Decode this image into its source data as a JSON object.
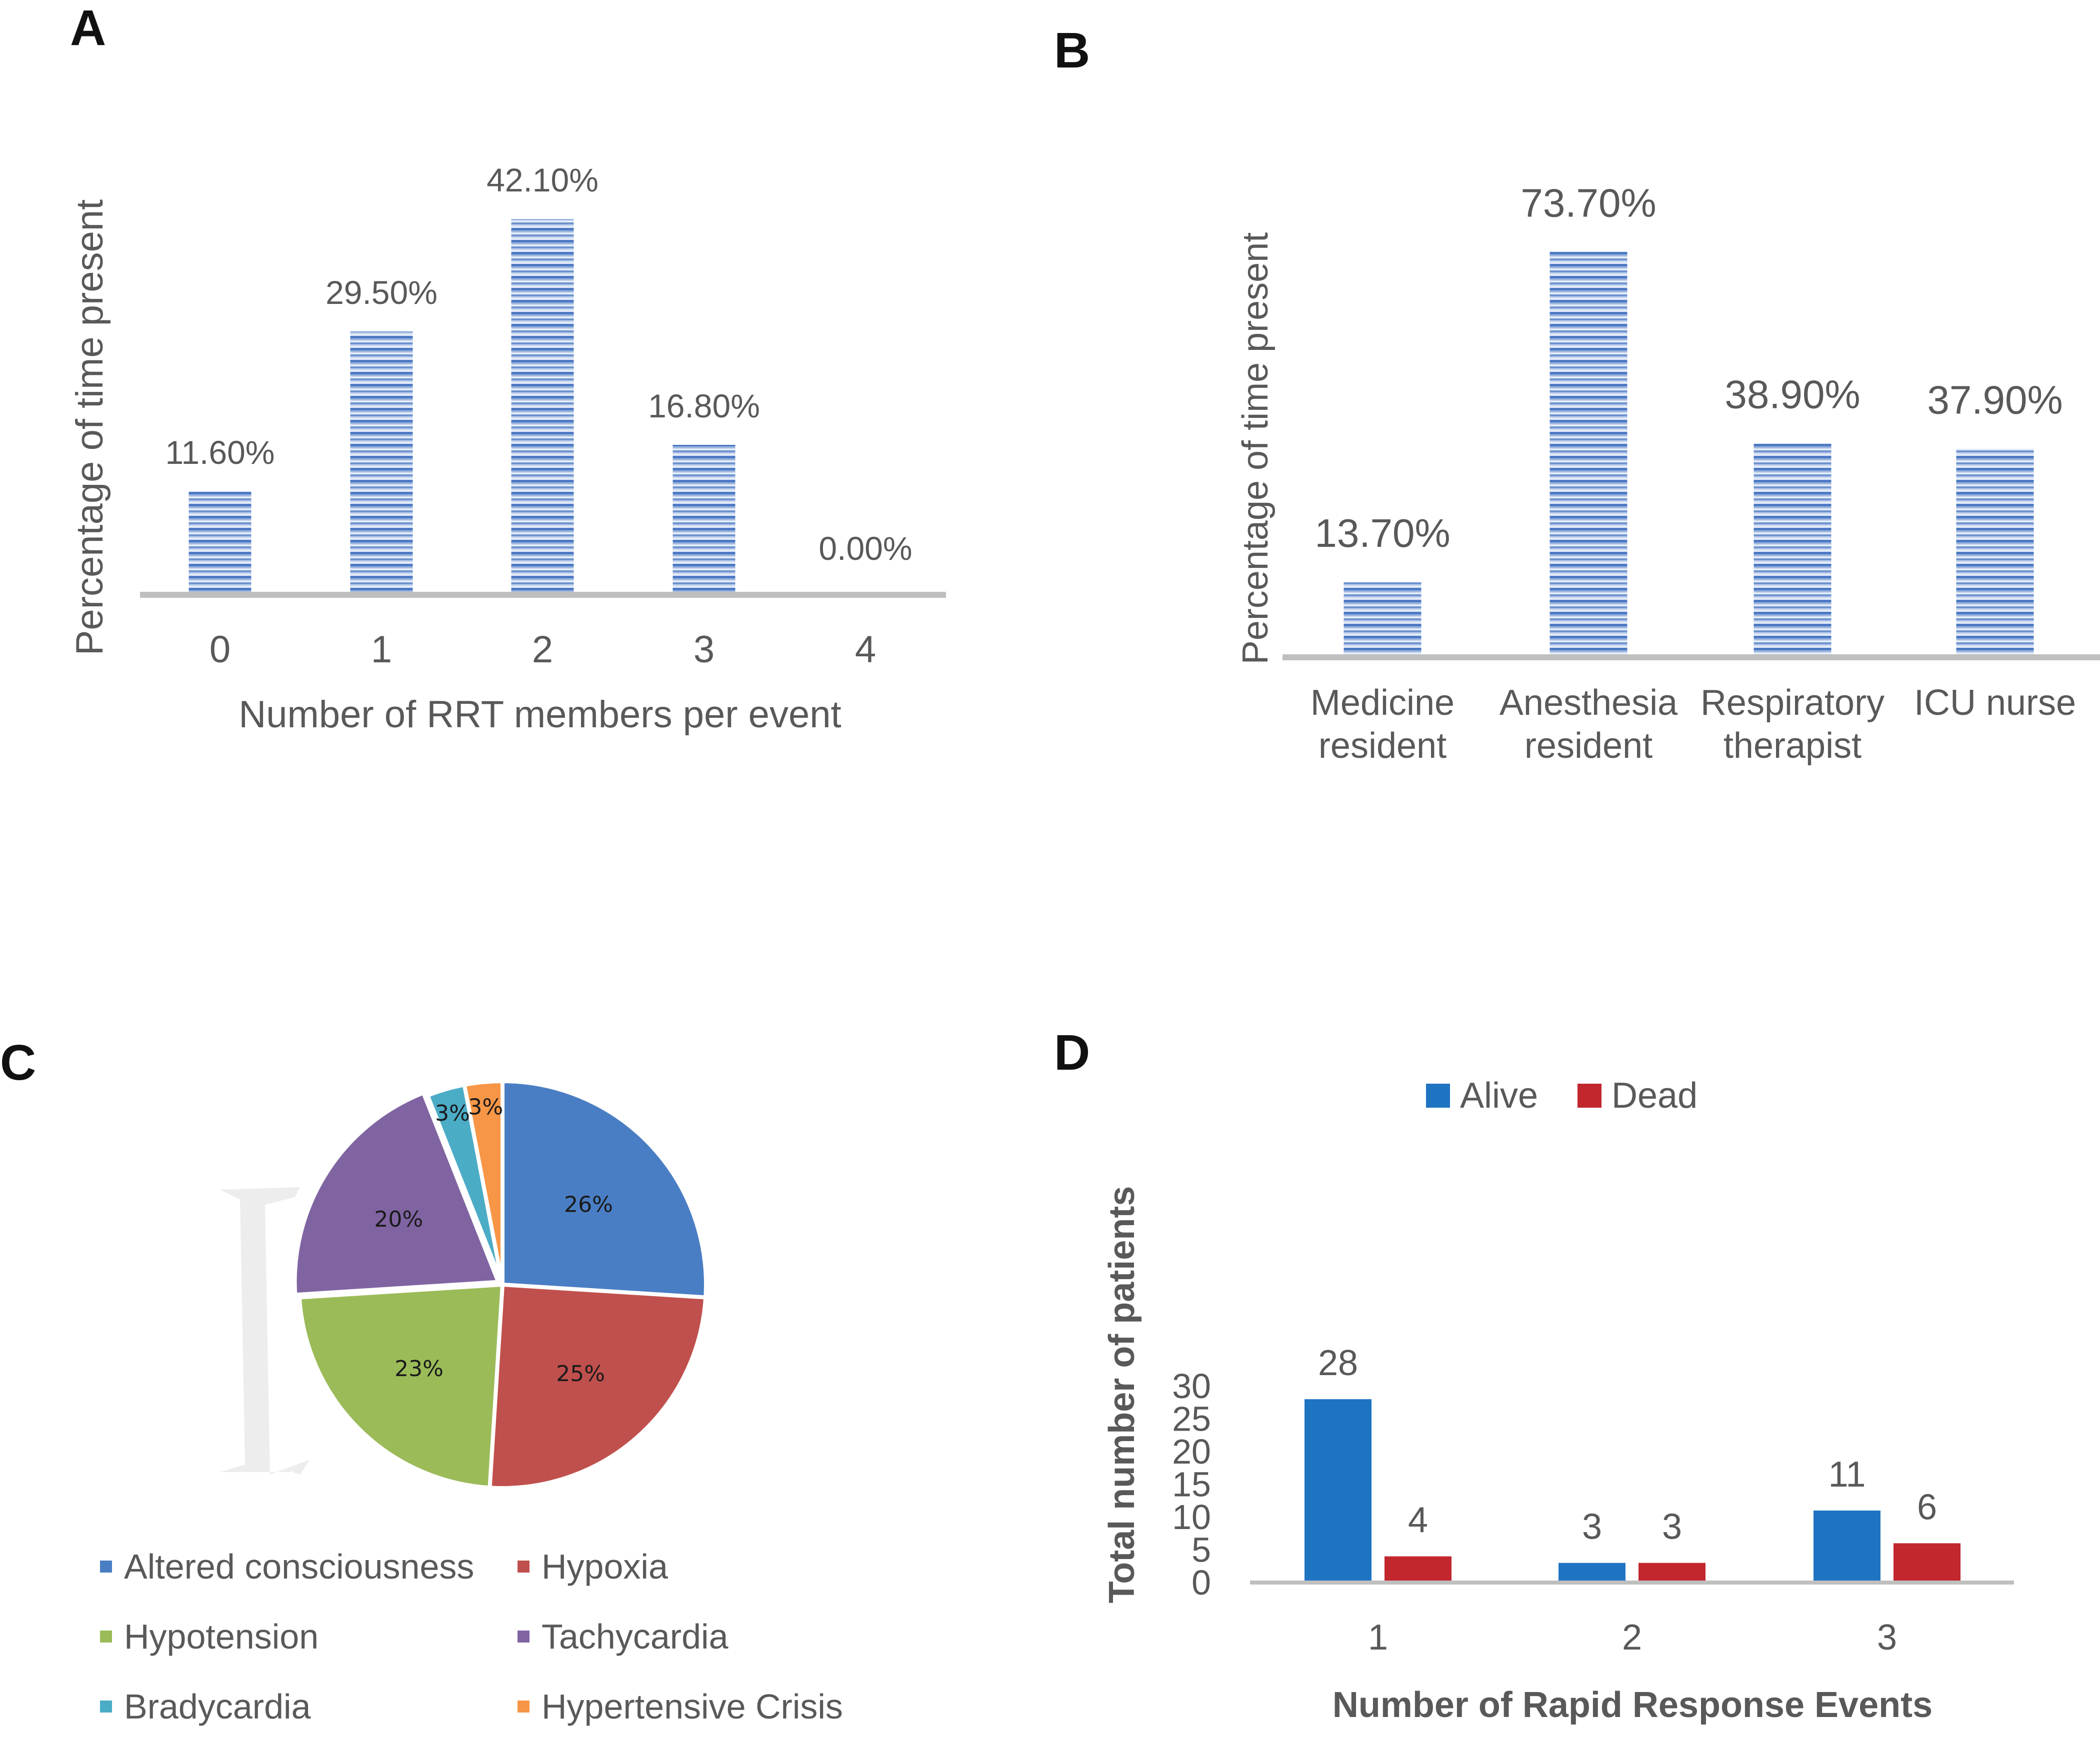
{
  "panels": [
    {
      "letter": "A"
    },
    {
      "letter": "B"
    },
    {
      "letter": "C"
    },
    {
      "letter": "D"
    }
  ],
  "colors": {
    "axis": "#bfbfbf",
    "text_grey": "#595959",
    "stripe_light": "#e6eef9",
    "stripe_dark": "#4a78c2",
    "alive": "#1f74c2",
    "dead": "#c1272d",
    "pie": [
      "#4a7ec4",
      "#c0504d",
      "#9bbb59",
      "#8064a2",
      "#4bacc6",
      "#f79646"
    ]
  },
  "chart_data": [
    {
      "panel": "A",
      "type": "bar",
      "categories": [
        "0",
        "1",
        "2",
        "3",
        "4"
      ],
      "values": [
        11.6,
        29.5,
        42.1,
        16.8,
        0.0
      ],
      "data_labels": [
        "11.60%",
        "29.50%",
        "42.10%",
        "16.80%",
        "0.00%"
      ],
      "title": "",
      "xlabel": "Number of RRT members per event",
      "ylabel": "Percentage of time present",
      "ylim": [
        0,
        45
      ]
    },
    {
      "panel": "B",
      "type": "bar",
      "categories": [
        [
          "Medicine",
          "resident"
        ],
        [
          "Anesthesia",
          "resident"
        ],
        [
          "Respiratory",
          "therapist"
        ],
        [
          "ICU nurse"
        ]
      ],
      "values": [
        13.7,
        73.7,
        38.9,
        37.9
      ],
      "data_labels": [
        "13.70%",
        "73.70%",
        "38.90%",
        "37.90%"
      ],
      "title": "",
      "xlabel": "",
      "ylabel": "Percentage of time present",
      "ylim": [
        0,
        80
      ]
    },
    {
      "panel": "C",
      "type": "pie",
      "labels": [
        "Altered consciousness",
        "Hypoxia",
        "Hypotension",
        "Tachycardia",
        "Bradycardia",
        "Hypertensive Crisis"
      ],
      "values": [
        26,
        25,
        23,
        20,
        3,
        3
      ],
      "data_labels": [
        "26%",
        "25%",
        "23%",
        "20%",
        "3%",
        "3%"
      ],
      "legend": "bottom"
    },
    {
      "panel": "D",
      "type": "bar",
      "categories": [
        "1",
        "2",
        "3"
      ],
      "series": [
        {
          "name": "Alive",
          "values": [
            28,
            3,
            11
          ]
        },
        {
          "name": "Dead",
          "values": [
            4,
            3,
            6
          ]
        }
      ],
      "title": "",
      "xlabel": "Number of Rapid Response Events",
      "ylabel": "Total number of patients",
      "ylim": [
        0,
        30
      ],
      "yticks": [
        "0",
        "5",
        "10",
        "15",
        "20",
        "25",
        "30"
      ],
      "legend": "top"
    }
  ]
}
